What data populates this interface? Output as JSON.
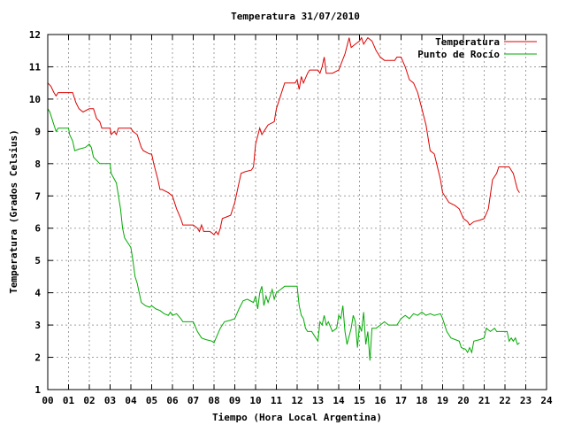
{
  "chart_data": {
    "type": "line",
    "title": "Temperatura 31/07/2010",
    "xlabel": "Tiempo (Hora Local Argentina)",
    "ylabel": "Temperatura (Grados Celsius)",
    "xlim": [
      0,
      24
    ],
    "ylim": [
      1,
      12
    ],
    "x_ticks": [
      "00",
      "01",
      "02",
      "03",
      "04",
      "05",
      "06",
      "07",
      "08",
      "09",
      "10",
      "11",
      "12",
      "13",
      "14",
      "15",
      "16",
      "17",
      "18",
      "19",
      "20",
      "21",
      "22",
      "23",
      "24"
    ],
    "y_ticks": [
      "1",
      "2",
      "3",
      "4",
      "5",
      "6",
      "7",
      "8",
      "9",
      "10",
      "11",
      "12"
    ],
    "grid": true,
    "legend_position": "top-right",
    "series": [
      {
        "name": "Temperatura",
        "color": "#dd0000",
        "points": [
          [
            0.0,
            10.5
          ],
          [
            0.15,
            10.4
          ],
          [
            0.3,
            10.2
          ],
          [
            0.4,
            10.1
          ],
          [
            0.5,
            10.2
          ],
          [
            1.0,
            10.2
          ],
          [
            1.2,
            10.2
          ],
          [
            1.35,
            9.9
          ],
          [
            1.5,
            9.7
          ],
          [
            1.7,
            9.6
          ],
          [
            2.0,
            9.7
          ],
          [
            2.2,
            9.7
          ],
          [
            2.35,
            9.4
          ],
          [
            2.5,
            9.3
          ],
          [
            2.6,
            9.1
          ],
          [
            3.0,
            9.1
          ],
          [
            3.05,
            8.9
          ],
          [
            3.2,
            9.0
          ],
          [
            3.3,
            8.9
          ],
          [
            3.4,
            9.1
          ],
          [
            4.0,
            9.1
          ],
          [
            4.1,
            9.0
          ],
          [
            4.3,
            8.9
          ],
          [
            4.5,
            8.5
          ],
          [
            4.6,
            8.4
          ],
          [
            4.9,
            8.3
          ],
          [
            5.0,
            8.3
          ],
          [
            5.1,
            8.0
          ],
          [
            5.3,
            7.5
          ],
          [
            5.4,
            7.2
          ],
          [
            5.5,
            7.2
          ],
          [
            5.8,
            7.1
          ],
          [
            6.0,
            7.0
          ],
          [
            6.2,
            6.6
          ],
          [
            6.4,
            6.3
          ],
          [
            6.5,
            6.1
          ],
          [
            7.0,
            6.1
          ],
          [
            7.2,
            6.0
          ],
          [
            7.3,
            5.9
          ],
          [
            7.4,
            6.1
          ],
          [
            7.5,
            5.9
          ],
          [
            7.8,
            5.9
          ],
          [
            7.9,
            5.85
          ],
          [
            8.0,
            5.8
          ],
          [
            8.1,
            5.9
          ],
          [
            8.2,
            5.8
          ],
          [
            8.3,
            6.0
          ],
          [
            8.4,
            6.3
          ],
          [
            8.6,
            6.35
          ],
          [
            8.8,
            6.4
          ],
          [
            9.0,
            6.8
          ],
          [
            9.2,
            7.4
          ],
          [
            9.3,
            7.7
          ],
          [
            9.5,
            7.75
          ],
          [
            9.8,
            7.8
          ],
          [
            9.9,
            7.9
          ],
          [
            10.0,
            8.6
          ],
          [
            10.2,
            9.1
          ],
          [
            10.3,
            8.9
          ],
          [
            10.5,
            9.1
          ],
          [
            10.6,
            9.2
          ],
          [
            10.9,
            9.3
          ],
          [
            11.0,
            9.7
          ],
          [
            11.2,
            10.1
          ],
          [
            11.4,
            10.5
          ],
          [
            11.7,
            10.5
          ],
          [
            11.9,
            10.5
          ],
          [
            12.0,
            10.6
          ],
          [
            12.1,
            10.3
          ],
          [
            12.2,
            10.7
          ],
          [
            12.3,
            10.5
          ],
          [
            12.5,
            10.8
          ],
          [
            12.6,
            10.9
          ],
          [
            13.0,
            10.9
          ],
          [
            13.1,
            10.8
          ],
          [
            13.2,
            11.0
          ],
          [
            13.3,
            11.3
          ],
          [
            13.4,
            10.8
          ],
          [
            13.7,
            10.8
          ],
          [
            14.0,
            10.9
          ],
          [
            14.3,
            11.4
          ],
          [
            14.5,
            11.9
          ],
          [
            14.6,
            11.6
          ],
          [
            14.8,
            11.7
          ],
          [
            15.0,
            11.8
          ],
          [
            15.1,
            11.9
          ],
          [
            15.2,
            11.7
          ],
          [
            15.4,
            11.9
          ],
          [
            15.6,
            11.8
          ],
          [
            15.8,
            11.5
          ],
          [
            16.0,
            11.3
          ],
          [
            16.2,
            11.2
          ],
          [
            16.5,
            11.2
          ],
          [
            16.7,
            11.2
          ],
          [
            16.8,
            11.3
          ],
          [
            17.0,
            11.3
          ],
          [
            17.2,
            11.0
          ],
          [
            17.4,
            10.6
          ],
          [
            17.6,
            10.5
          ],
          [
            17.8,
            10.2
          ],
          [
            18.0,
            9.7
          ],
          [
            18.2,
            9.2
          ],
          [
            18.4,
            8.4
          ],
          [
            18.6,
            8.3
          ],
          [
            18.9,
            7.5
          ],
          [
            19.0,
            7.1
          ],
          [
            19.3,
            6.8
          ],
          [
            19.6,
            6.7
          ],
          [
            19.8,
            6.6
          ],
          [
            20.0,
            6.3
          ],
          [
            20.2,
            6.2
          ],
          [
            20.3,
            6.1
          ],
          [
            20.5,
            6.2
          ],
          [
            20.8,
            6.25
          ],
          [
            21.0,
            6.3
          ],
          [
            21.2,
            6.6
          ],
          [
            21.4,
            7.5
          ],
          [
            21.6,
            7.7
          ],
          [
            21.7,
            7.9
          ],
          [
            22.2,
            7.9
          ],
          [
            22.4,
            7.7
          ],
          [
            22.6,
            7.2
          ],
          [
            22.7,
            7.1
          ]
        ]
      },
      {
        "name": "Punto de Rocío",
        "color": "#00aa00",
        "points": [
          [
            0.0,
            9.7
          ],
          [
            0.1,
            9.6
          ],
          [
            0.3,
            9.2
          ],
          [
            0.4,
            9.0
          ],
          [
            0.5,
            9.1
          ],
          [
            1.0,
            9.1
          ],
          [
            1.05,
            8.9
          ],
          [
            1.2,
            8.7
          ],
          [
            1.3,
            8.4
          ],
          [
            1.5,
            8.45
          ],
          [
            1.8,
            8.5
          ],
          [
            2.0,
            8.6
          ],
          [
            2.1,
            8.5
          ],
          [
            2.2,
            8.2
          ],
          [
            2.5,
            8.0
          ],
          [
            2.8,
            8.0
          ],
          [
            3.0,
            8.0
          ],
          [
            3.05,
            7.7
          ],
          [
            3.3,
            7.4
          ],
          [
            3.5,
            6.6
          ],
          [
            3.6,
            6.0
          ],
          [
            3.7,
            5.7
          ],
          [
            3.9,
            5.5
          ],
          [
            4.0,
            5.4
          ],
          [
            4.1,
            5.0
          ],
          [
            4.2,
            4.5
          ],
          [
            4.3,
            4.3
          ],
          [
            4.4,
            4.0
          ],
          [
            4.5,
            3.7
          ],
          [
            4.7,
            3.6
          ],
          [
            4.9,
            3.55
          ],
          [
            5.0,
            3.6
          ],
          [
            5.2,
            3.5
          ],
          [
            5.4,
            3.45
          ],
          [
            5.6,
            3.35
          ],
          [
            5.8,
            3.3
          ],
          [
            5.9,
            3.4
          ],
          [
            6.0,
            3.3
          ],
          [
            6.2,
            3.35
          ],
          [
            6.4,
            3.2
          ],
          [
            6.5,
            3.1
          ],
          [
            6.8,
            3.1
          ],
          [
            7.0,
            3.1
          ],
          [
            7.2,
            2.8
          ],
          [
            7.4,
            2.6
          ],
          [
            7.6,
            2.55
          ],
          [
            7.9,
            2.5
          ],
          [
            8.0,
            2.45
          ],
          [
            8.1,
            2.6
          ],
          [
            8.3,
            2.9
          ],
          [
            8.5,
            3.1
          ],
          [
            8.8,
            3.15
          ],
          [
            9.0,
            3.2
          ],
          [
            9.2,
            3.5
          ],
          [
            9.4,
            3.75
          ],
          [
            9.6,
            3.8
          ],
          [
            9.9,
            3.7
          ],
          [
            10.0,
            3.9
          ],
          [
            10.1,
            3.5
          ],
          [
            10.2,
            4.0
          ],
          [
            10.3,
            4.2
          ],
          [
            10.4,
            3.6
          ],
          [
            10.5,
            3.9
          ],
          [
            10.6,
            3.7
          ],
          [
            10.8,
            4.1
          ],
          [
            10.9,
            3.8
          ],
          [
            11.0,
            4.0
          ],
          [
            11.2,
            4.1
          ],
          [
            11.4,
            4.2
          ],
          [
            12.0,
            4.2
          ],
          [
            12.1,
            3.6
          ],
          [
            12.2,
            3.3
          ],
          [
            12.3,
            3.2
          ],
          [
            12.4,
            2.9
          ],
          [
            12.5,
            2.8
          ],
          [
            12.7,
            2.8
          ],
          [
            12.9,
            2.6
          ],
          [
            13.0,
            2.5
          ],
          [
            13.1,
            3.1
          ],
          [
            13.2,
            3.0
          ],
          [
            13.3,
            3.3
          ],
          [
            13.4,
            3.0
          ],
          [
            13.5,
            3.1
          ],
          [
            13.7,
            2.8
          ],
          [
            13.9,
            2.9
          ],
          [
            14.0,
            3.3
          ],
          [
            14.1,
            3.2
          ],
          [
            14.2,
            3.6
          ],
          [
            14.3,
            2.8
          ],
          [
            14.4,
            2.4
          ],
          [
            14.6,
            2.9
          ],
          [
            14.7,
            3.3
          ],
          [
            14.8,
            3.1
          ],
          [
            14.9,
            2.3
          ],
          [
            15.0,
            3.0
          ],
          [
            15.1,
            2.8
          ],
          [
            15.2,
            3.4
          ],
          [
            15.3,
            2.4
          ],
          [
            15.4,
            2.8
          ],
          [
            15.5,
            1.9
          ],
          [
            15.6,
            2.9
          ],
          [
            15.8,
            2.9
          ],
          [
            16.0,
            3.0
          ],
          [
            16.2,
            3.1
          ],
          [
            16.4,
            3.0
          ],
          [
            16.8,
            3.0
          ],
          [
            17.0,
            3.2
          ],
          [
            17.2,
            3.3
          ],
          [
            17.4,
            3.2
          ],
          [
            17.6,
            3.35
          ],
          [
            17.8,
            3.3
          ],
          [
            18.0,
            3.4
          ],
          [
            18.2,
            3.3
          ],
          [
            18.4,
            3.35
          ],
          [
            18.6,
            3.3
          ],
          [
            18.9,
            3.35
          ],
          [
            19.0,
            3.2
          ],
          [
            19.2,
            2.8
          ],
          [
            19.4,
            2.6
          ],
          [
            19.6,
            2.55
          ],
          [
            19.8,
            2.5
          ],
          [
            19.9,
            2.3
          ],
          [
            20.1,
            2.25
          ],
          [
            20.2,
            2.15
          ],
          [
            20.3,
            2.3
          ],
          [
            20.4,
            2.15
          ],
          [
            20.5,
            2.5
          ],
          [
            20.8,
            2.55
          ],
          [
            21.0,
            2.6
          ],
          [
            21.1,
            2.9
          ],
          [
            21.3,
            2.8
          ],
          [
            21.5,
            2.9
          ],
          [
            21.6,
            2.8
          ],
          [
            22.1,
            2.8
          ],
          [
            22.2,
            2.5
          ],
          [
            22.3,
            2.6
          ],
          [
            22.4,
            2.5
          ],
          [
            22.5,
            2.6
          ],
          [
            22.6,
            2.4
          ],
          [
            22.7,
            2.45
          ]
        ]
      }
    ]
  }
}
